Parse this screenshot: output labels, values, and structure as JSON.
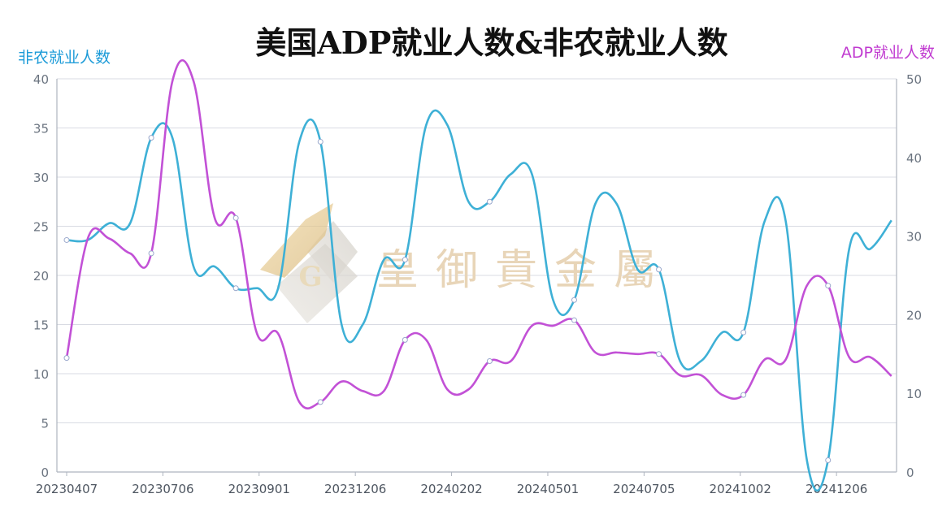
{
  "chart_data": {
    "type": "line",
    "title": "美国ADP就业人数&非农就业人数",
    "x_tick_labels": [
      "20230407",
      "20230706",
      "20230901",
      "20231206",
      "20240202",
      "20240501",
      "20240705",
      "20241002",
      "20241206"
    ],
    "y_left": {
      "label": "非农就业人数",
      "range": [
        0,
        40
      ],
      "ticks": [
        0,
        5,
        10,
        15,
        20,
        25,
        30,
        35,
        40
      ]
    },
    "y_right": {
      "label": "ADP就业人数",
      "range": [
        0,
        50
      ],
      "ticks": [
        0,
        10,
        20,
        30,
        40,
        50
      ]
    },
    "grid": true,
    "series": [
      {
        "name": "非农就业人数",
        "axis": "left",
        "color": "#3eb0d6",
        "values": [
          23.6,
          23.6,
          25.3,
          25.3,
          34.0,
          34.0,
          20.9,
          20.9,
          18.7,
          18.7,
          18.7,
          33.6,
          33.6,
          15.0,
          15.0,
          21.6,
          21.6,
          35.3,
          35.3,
          27.5,
          27.5,
          30.3,
          30.3,
          17.5,
          17.5,
          27.3,
          27.3,
          20.6,
          20.6,
          11.3,
          11.3,
          14.2,
          14.2,
          25.5,
          25.5,
          1.2,
          1.2,
          22.7,
          22.7,
          25.6
        ]
      },
      {
        "name": "ADP就业人数",
        "axis": "right",
        "color": "#c251d6",
        "values": [
          14.5,
          29.7,
          29.7,
          27.8,
          27.8,
          49.7,
          49.7,
          32.3,
          32.3,
          17.6,
          17.6,
          8.9,
          8.9,
          11.5,
          10.3,
          10.3,
          16.8,
          16.8,
          10.5,
          10.5,
          14.1,
          14.1,
          18.6,
          18.6,
          19.3,
          15.2,
          15.2,
          15.0,
          15.0,
          12.3,
          12.3,
          9.8,
          9.8,
          14.3,
          14.3,
          23.7,
          23.7,
          14.6,
          14.6,
          12.2
        ]
      }
    ]
  },
  "watermark": {
    "text": "皇御貴金屬",
    "logo_letter": "G"
  }
}
